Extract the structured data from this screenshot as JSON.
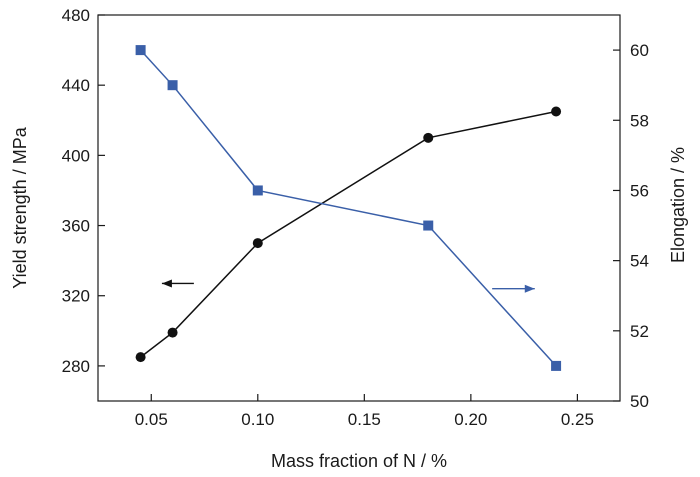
{
  "chart_data": {
    "type": "line",
    "xlabel": "Mass fraction of N / %",
    "ylabel_left": "Yield strength / MPa",
    "ylabel_right": "Elongation  / %",
    "xlim": [
      0.025,
      0.27
    ],
    "ylim_left": [
      260,
      480
    ],
    "ylim_right": [
      50,
      61
    ],
    "x_ticks": [
      0.05,
      0.1,
      0.15,
      0.2,
      0.25
    ],
    "x_tick_labels": [
      "0.05",
      "0.10",
      "0.15",
      "0.20",
      "0.25"
    ],
    "y_left_ticks": [
      280,
      320,
      360,
      400,
      440,
      480
    ],
    "y_left_tick_labels": [
      "280",
      "320",
      "360",
      "400",
      "440",
      "480"
    ],
    "y_right_ticks": [
      50,
      52,
      54,
      56,
      58,
      60
    ],
    "y_right_tick_labels": [
      "50",
      "52",
      "54",
      "56",
      "58",
      "60"
    ],
    "grid": false,
    "series": [
      {
        "axis": "left",
        "marker": "circle",
        "color": "#111111",
        "x": [
          0.045,
          0.06,
          0.1,
          0.18,
          0.24
        ],
        "y": [
          285,
          299,
          350,
          410,
          425
        ]
      },
      {
        "axis": "right",
        "marker": "square",
        "color": "#3a5fa8",
        "x": [
          0.045,
          0.06,
          0.1,
          0.18,
          0.24
        ],
        "y": [
          60,
          59,
          56,
          55,
          51
        ]
      }
    ],
    "annotations": [
      {
        "type": "arrow",
        "points_to": "left",
        "series": 0,
        "from": [
          0.07,
          327
        ],
        "to": [
          0.055,
          327
        ]
      },
      {
        "type": "arrow",
        "points_to": "right",
        "series": 1,
        "from": [
          0.21,
          53.2
        ],
        "to": [
          0.23,
          53.2
        ]
      }
    ]
  }
}
